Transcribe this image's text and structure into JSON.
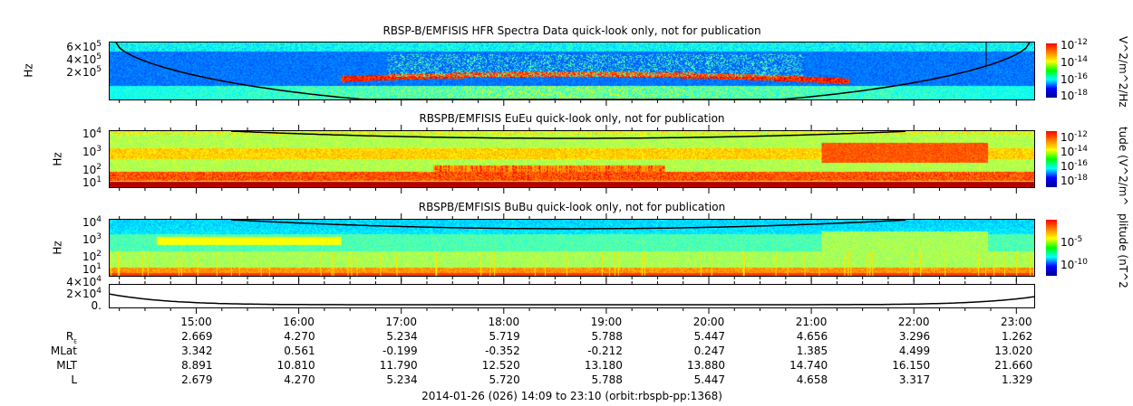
{
  "chart_data": {
    "type": "heatmap",
    "panels": [
      {
        "title": "RBSP-B/EMFISIS  HFR Spectra Data quick-look only, not for publication",
        "ylabel": "Hz",
        "yticks": [
          {
            "b": "6×10",
            "e": "5"
          },
          {
            "b": "4×10",
            "e": "5"
          },
          {
            "b": "2×10",
            "e": "5"
          }
        ],
        "ytop": {
          "b": "",
          "e": "5"
        },
        "colorbar_label": "V^2/m^2/Hz",
        "colorbar_ticks": [
          {
            "b": "10",
            "e": "-12"
          },
          {
            "b": "10",
            "e": "-14"
          },
          {
            "b": "10",
            "e": "-16"
          },
          {
            "b": "10",
            "e": "-18"
          }
        ]
      },
      {
        "title": "RBSPB/EMFISIS  EuEu quick-look only, not for publication",
        "ylabel": "Hz",
        "yticks": [
          {
            "b": "10",
            "e": "4"
          },
          {
            "b": "10",
            "e": "3"
          },
          {
            "b": "10",
            "e": "2"
          },
          {
            "b": "10",
            "e": "1"
          }
        ],
        "colorbar_label": "tude (V^2/m^",
        "colorbar_ticks": [
          {
            "b": "10",
            "e": "-12"
          },
          {
            "b": "10",
            "e": "-14"
          },
          {
            "b": "10",
            "e": "-16"
          },
          {
            "b": "10",
            "e": "-18"
          }
        ]
      },
      {
        "title": "RBSPB/EMFISIS  BuBu quick-look only, not for publication",
        "ylabel": "Hz",
        "yticks": [
          {
            "b": "10",
            "e": "4"
          },
          {
            "b": "10",
            "e": "3"
          },
          {
            "b": "10",
            "e": "2"
          },
          {
            "b": "10",
            "e": "1"
          }
        ],
        "colorbar_label": "plitude (nT^2",
        "colorbar_ticks": [
          {
            "b": "10",
            "e": "-5"
          },
          {
            "b": "10",
            "e": "-10"
          }
        ]
      },
      {
        "title": "",
        "yticks": [
          {
            "b": "4×10",
            "e": "4"
          },
          {
            "b": "2×10",
            "e": "4"
          },
          {
            "b": "0.",
            "e": ""
          }
        ]
      }
    ],
    "x_ticks": [
      "15:00",
      "16:00",
      "17:00",
      "18:00",
      "19:00",
      "20:00",
      "21:00",
      "22:00",
      "23:00"
    ],
    "ephemeris": [
      {
        "label": "R",
        "sub": "E",
        "values": [
          "2.669",
          "4.270",
          "5.234",
          "5.719",
          "5.788",
          "5.447",
          "4.656",
          "3.296",
          "1.262"
        ]
      },
      {
        "label": "MLat",
        "values": [
          "3.342",
          "0.561",
          "-0.199",
          "-0.352",
          "-0.212",
          "0.247",
          "1.385",
          "4.499",
          "13.020"
        ]
      },
      {
        "label": "MLT",
        "values": [
          "8.891",
          "10.810",
          "11.790",
          "12.520",
          "13.180",
          "13.880",
          "14.740",
          "16.150",
          "21.660"
        ]
      },
      {
        "label": "L",
        "values": [
          "2.679",
          "4.270",
          "5.234",
          "5.720",
          "5.788",
          "5.447",
          "4.658",
          "3.317",
          "1.329"
        ]
      }
    ],
    "footer": "2014-01-26 (026) 14:09 to 23:10 (orbit:rbspb-pp:1368)"
  }
}
